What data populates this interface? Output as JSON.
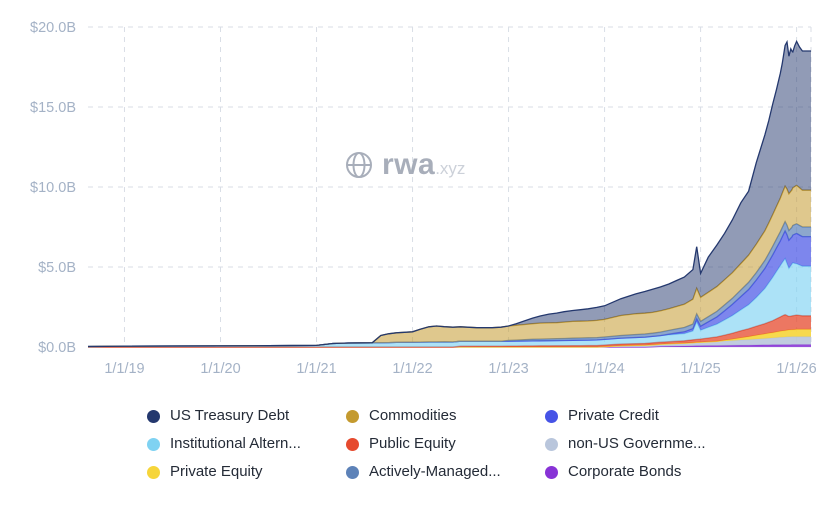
{
  "watermark": {
    "brand": "rwa",
    "domain": ".xyz"
  },
  "chart_data": {
    "type": "area",
    "stacked": true,
    "title": "",
    "xlabel": "",
    "ylabel": "",
    "unit": "USD billions",
    "grid": "dashed",
    "legend_position": "bottom",
    "x_range": [
      2018.62,
      2026.15
    ],
    "y_axis": {
      "ylim": [
        0,
        20
      ],
      "ticks": [
        0,
        5,
        10,
        15,
        20
      ],
      "tick_labels": [
        "$0.0B",
        "$5.0B",
        "$10.0B",
        "$15.0B",
        "$20.0B"
      ]
    },
    "x_axis": {
      "ticks": [
        2019,
        2020,
        2021,
        2022,
        2023,
        2024,
        2025,
        2026
      ],
      "tick_labels": [
        "1/1/19",
        "1/1/20",
        "1/1/21",
        "1/1/22",
        "1/1/23",
        "1/1/24",
        "1/1/25",
        "1/1/26"
      ]
    },
    "series": [
      {
        "name": "corporate-bonds",
        "label": "Corporate Bonds",
        "color": "#8833d6",
        "fill_opacity": 0.85,
        "points": [
          [
            2024.42,
            0
          ],
          [
            2024.58,
            0.04
          ],
          [
            2024.83,
            0.06
          ],
          [
            2025.0,
            0.08
          ],
          [
            2025.33,
            0.1
          ],
          [
            2025.67,
            0.13
          ],
          [
            2026.0,
            0.15
          ],
          [
            2026.06,
            0.15
          ]
        ]
      },
      {
        "name": "non-us-government",
        "label": "non-US Governme...",
        "color": "#b9c6dc",
        "fill_opacity": 0.9,
        "points": [
          [
            2023.92,
            0
          ],
          [
            2024.17,
            0.08
          ],
          [
            2024.5,
            0.12
          ],
          [
            2024.83,
            0.18
          ],
          [
            2025.0,
            0.22
          ],
          [
            2025.33,
            0.3
          ],
          [
            2025.67,
            0.4
          ],
          [
            2025.92,
            0.5
          ],
          [
            2026.06,
            0.5
          ]
        ]
      },
      {
        "name": "private-equity",
        "label": "Private Equity",
        "color": "#f6d53a",
        "fill_opacity": 0.9,
        "points": [
          [
            2025.17,
            0
          ],
          [
            2025.33,
            0.08
          ],
          [
            2025.5,
            0.18
          ],
          [
            2025.67,
            0.28
          ],
          [
            2025.83,
            0.38
          ],
          [
            2026.0,
            0.45
          ],
          [
            2026.06,
            0.45
          ]
        ]
      },
      {
        "name": "public-equity",
        "label": "Public Equity",
        "color": "#e64a2e",
        "fill_opacity": 0.75,
        "points": [
          [
            2022.42,
            0
          ],
          [
            2022.5,
            0.05
          ],
          [
            2023.0,
            0.06
          ],
          [
            2023.5,
            0.08
          ],
          [
            2024.0,
            0.1
          ],
          [
            2024.5,
            0.12
          ],
          [
            2024.83,
            0.15
          ],
          [
            2025.0,
            0.2
          ],
          [
            2025.17,
            0.28
          ],
          [
            2025.33,
            0.38
          ],
          [
            2025.5,
            0.5
          ],
          [
            2025.67,
            0.65
          ],
          [
            2025.75,
            0.75
          ],
          [
            2025.83,
            0.9
          ],
          [
            2025.88,
            1.0
          ],
          [
            2025.92,
            0.85
          ],
          [
            2026.0,
            0.9
          ],
          [
            2026.06,
            0.85
          ]
        ]
      },
      {
        "name": "institutional-alternatives",
        "label": "Institutional Altern...",
        "color": "#7fd2f2",
        "fill_opacity": 0.65,
        "points": [
          [
            2018.62,
            0.03
          ],
          [
            2019.0,
            0.05
          ],
          [
            2019.5,
            0.06
          ],
          [
            2020.0,
            0.07
          ],
          [
            2020.5,
            0.08
          ],
          [
            2021.0,
            0.1
          ],
          [
            2021.17,
            0.22
          ],
          [
            2021.33,
            0.25
          ],
          [
            2021.67,
            0.27
          ],
          [
            2022.0,
            0.3
          ],
          [
            2022.33,
            0.32
          ],
          [
            2022.67,
            0.3
          ],
          [
            2023.0,
            0.3
          ],
          [
            2023.5,
            0.32
          ],
          [
            2024.0,
            0.35
          ],
          [
            2024.5,
            0.4
          ],
          [
            2024.83,
            0.45
          ],
          [
            2024.92,
            0.55
          ],
          [
            2024.96,
            1.1
          ],
          [
            2025.0,
            0.55
          ],
          [
            2025.17,
            0.8
          ],
          [
            2025.33,
            1.1
          ],
          [
            2025.5,
            1.5
          ],
          [
            2025.58,
            1.8
          ],
          [
            2025.67,
            2.2
          ],
          [
            2025.75,
            2.7
          ],
          [
            2025.83,
            3.2
          ],
          [
            2025.88,
            3.5
          ],
          [
            2025.92,
            3.0
          ],
          [
            2025.96,
            3.3
          ],
          [
            2026.0,
            3.2
          ],
          [
            2026.06,
            3.1
          ]
        ]
      },
      {
        "name": "private-credit",
        "label": "Private Credit",
        "color": "#4653e6",
        "fill_opacity": 0.7,
        "points": [
          [
            2024.58,
            0
          ],
          [
            2024.75,
            0.08
          ],
          [
            2024.92,
            0.15
          ],
          [
            2025.0,
            0.25
          ],
          [
            2025.17,
            0.45
          ],
          [
            2025.33,
            0.7
          ],
          [
            2025.5,
            0.95
          ],
          [
            2025.67,
            1.25
          ],
          [
            2025.83,
            1.55
          ],
          [
            2025.9,
            1.8
          ],
          [
            2025.95,
            1.7
          ],
          [
            2026.0,
            1.9
          ],
          [
            2026.06,
            1.85
          ]
        ]
      },
      {
        "name": "actively-managed",
        "label": "Actively-Managed...",
        "color": "#5d82b8",
        "fill_opacity": 0.7,
        "points": [
          [
            2022.92,
            0
          ],
          [
            2023.0,
            0.05
          ],
          [
            2023.25,
            0.1
          ],
          [
            2023.5,
            0.12
          ],
          [
            2024.0,
            0.15
          ],
          [
            2024.5,
            0.2
          ],
          [
            2025.0,
            0.3
          ],
          [
            2025.33,
            0.38
          ],
          [
            2025.67,
            0.5
          ],
          [
            2025.92,
            0.6
          ],
          [
            2026.06,
            0.6
          ]
        ]
      },
      {
        "name": "commodities",
        "label": "Commodities",
        "color": "#c49a2f",
        "fill_opacity": 0.55,
        "points": [
          [
            2021.58,
            0
          ],
          [
            2021.67,
            0.45
          ],
          [
            2021.75,
            0.55
          ],
          [
            2021.83,
            0.6
          ],
          [
            2022.0,
            0.65
          ],
          [
            2022.08,
            0.8
          ],
          [
            2022.17,
            0.95
          ],
          [
            2022.25,
            1.0
          ],
          [
            2022.33,
            0.95
          ],
          [
            2022.5,
            0.9
          ],
          [
            2022.67,
            0.85
          ],
          [
            2022.83,
            0.85
          ],
          [
            2023.0,
            0.9
          ],
          [
            2023.17,
            0.95
          ],
          [
            2023.33,
            1.0
          ],
          [
            2023.5,
            1.0
          ],
          [
            2023.67,
            1.05
          ],
          [
            2023.83,
            1.05
          ],
          [
            2024.0,
            1.1
          ],
          [
            2024.17,
            1.25
          ],
          [
            2024.33,
            1.3
          ],
          [
            2024.5,
            1.3
          ],
          [
            2024.67,
            1.35
          ],
          [
            2024.83,
            1.45
          ],
          [
            2024.96,
            1.6
          ],
          [
            2025.0,
            1.5
          ],
          [
            2025.17,
            1.55
          ],
          [
            2025.33,
            1.6
          ],
          [
            2025.5,
            1.7
          ],
          [
            2025.67,
            1.85
          ],
          [
            2025.83,
            2.1
          ],
          [
            2025.92,
            2.3
          ],
          [
            2026.0,
            2.4
          ],
          [
            2026.06,
            2.3
          ]
        ]
      },
      {
        "name": "us-treasury-debt",
        "label": "US Treasury Debt",
        "color": "#24386e",
        "fill_opacity": 0.5,
        "points": [
          [
            2023.0,
            0
          ],
          [
            2023.08,
            0.1
          ],
          [
            2023.25,
            0.35
          ],
          [
            2023.42,
            0.55
          ],
          [
            2023.58,
            0.65
          ],
          [
            2023.75,
            0.72
          ],
          [
            2024.0,
            0.85
          ],
          [
            2024.17,
            1.05
          ],
          [
            2024.33,
            1.25
          ],
          [
            2024.5,
            1.45
          ],
          [
            2024.67,
            1.55
          ],
          [
            2024.83,
            1.7
          ],
          [
            2024.92,
            1.85
          ],
          [
            2024.96,
            2.6
          ],
          [
            2025.0,
            1.5
          ],
          [
            2025.08,
            2.2
          ],
          [
            2025.17,
            2.6
          ],
          [
            2025.25,
            2.9
          ],
          [
            2025.33,
            3.3
          ],
          [
            2025.42,
            3.8
          ],
          [
            2025.5,
            4.0
          ],
          [
            2025.58,
            5.1
          ],
          [
            2025.67,
            6.0
          ],
          [
            2025.71,
            6.4
          ],
          [
            2025.75,
            6.9
          ],
          [
            2025.79,
            7.3
          ],
          [
            2025.83,
            7.8
          ],
          [
            2025.85,
            8.1
          ],
          [
            2025.88,
            8.8
          ],
          [
            2025.9,
            9.2
          ],
          [
            2025.92,
            8.6
          ],
          [
            2025.94,
            8.9
          ],
          [
            2025.96,
            8.5
          ],
          [
            2025.98,
            8.8
          ],
          [
            2026.0,
            9.0
          ],
          [
            2026.03,
            8.8
          ],
          [
            2026.06,
            8.7
          ]
        ]
      }
    ]
  },
  "legend": {
    "items": [
      {
        "label": "US Treasury Debt",
        "color": "#24386e"
      },
      {
        "label": "Commodities",
        "color": "#c49a2f"
      },
      {
        "label": "Private Credit",
        "color": "#4653e6"
      },
      {
        "label": "Institutional Altern...",
        "color": "#7fd2f2"
      },
      {
        "label": "Public Equity",
        "color": "#e64a2e"
      },
      {
        "label": "non-US Governme...",
        "color": "#b9c6dc"
      },
      {
        "label": "Private Equity",
        "color": "#f6d53a"
      },
      {
        "label": "Actively-Managed...",
        "color": "#5d82b8"
      },
      {
        "label": "Corporate Bonds",
        "color": "#8833d6"
      }
    ]
  }
}
